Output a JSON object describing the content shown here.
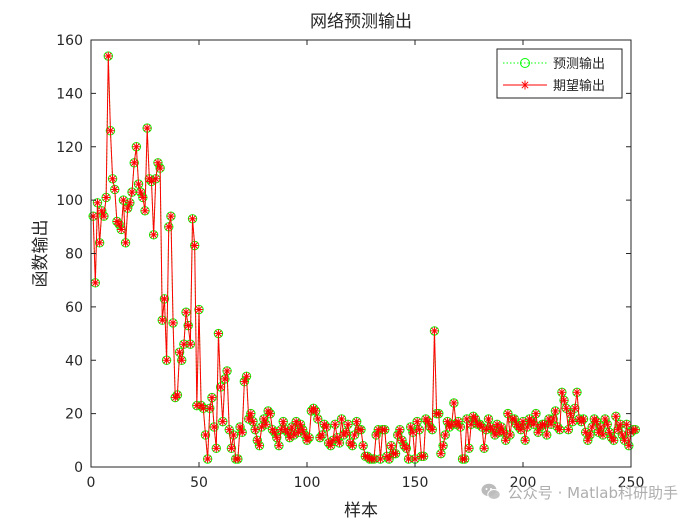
{
  "chart_data": {
    "type": "line",
    "title": "网络预测输出",
    "xlabel": "样本",
    "ylabel": "函数输出",
    "xlim": [
      0,
      250
    ],
    "ylim": [
      0,
      160
    ],
    "xticks": [
      0,
      50,
      100,
      150,
      200,
      250
    ],
    "yticks": [
      0,
      20,
      40,
      60,
      80,
      100,
      120,
      140,
      160
    ],
    "grid": false,
    "legend_position": "top-right",
    "series": [
      {
        "name": "预测输出",
        "style": "dotted line with circle markers",
        "color": "#00ff00",
        "values": [
          94,
          69,
          99,
          84,
          96,
          94,
          101,
          154,
          126,
          108,
          104,
          92,
          91,
          89,
          100,
          84,
          97,
          99,
          103,
          114,
          120,
          106,
          103,
          101,
          96,
          127,
          108,
          107,
          87,
          108,
          114,
          112,
          55,
          63,
          40,
          90,
          94,
          54,
          26,
          27,
          43,
          40,
          46,
          58,
          53,
          46,
          93,
          83,
          23,
          59,
          23,
          22,
          12,
          3,
          22,
          26,
          15,
          7,
          50,
          30,
          17,
          33,
          36,
          14,
          7,
          12,
          3,
          3,
          15,
          13,
          32,
          34,
          18,
          20,
          17,
          14,
          10,
          8,
          15,
          18,
          16,
          21,
          20,
          14,
          13,
          11,
          8,
          14,
          17,
          14,
          13,
          11,
          15,
          12,
          17,
          13,
          16,
          14,
          12,
          10,
          11,
          21,
          22,
          21,
          18,
          11,
          12,
          16,
          15,
          9,
          8,
          10,
          16,
          11,
          9,
          18,
          12,
          13,
          16,
          9,
          8,
          12,
          17,
          14,
          14,
          8,
          4,
          4,
          3,
          3,
          3,
          12,
          14,
          3,
          14,
          14,
          4,
          3,
          8,
          5,
          5,
          12,
          14,
          10,
          8,
          7,
          3,
          15,
          13,
          3,
          17,
          14,
          4,
          4,
          18,
          17,
          15,
          14,
          51,
          20,
          20,
          5,
          8,
          12,
          17,
          15,
          16,
          24,
          16,
          17,
          15,
          3,
          3,
          18,
          7,
          16,
          19,
          18,
          16,
          16,
          15,
          7,
          14,
          18,
          15,
          14,
          12,
          16,
          13,
          15,
          13,
          10,
          20,
          12,
          18,
          18,
          16,
          15,
          14,
          17,
          10,
          15,
          18,
          17,
          16,
          20,
          13,
          15,
          16,
          16,
          12,
          18,
          16,
          18,
          21,
          15,
          14,
          28,
          25,
          22,
          14,
          20,
          17,
          22,
          28,
          18,
          17,
          18,
          13,
          10,
          12,
          15,
          18,
          17,
          13,
          15,
          12,
          18,
          16,
          13,
          11,
          10,
          19,
          14,
          16,
          12,
          10,
          16,
          8,
          13,
          14,
          14
        ]
      },
      {
        "name": "期望输出",
        "style": "solid line with asterisk markers",
        "color": "#ff0000",
        "values": [
          94,
          69,
          99,
          84,
          96,
          94,
          101,
          154,
          126,
          108,
          104,
          92,
          91,
          89,
          100,
          84,
          97,
          99,
          103,
          114,
          120,
          106,
          103,
          101,
          96,
          127,
          108,
          107,
          87,
          108,
          114,
          112,
          55,
          63,
          40,
          90,
          94,
          54,
          26,
          27,
          43,
          40,
          46,
          58,
          53,
          46,
          93,
          83,
          23,
          59,
          23,
          22,
          12,
          3,
          22,
          26,
          15,
          7,
          50,
          30,
          17,
          33,
          36,
          14,
          7,
          12,
          3,
          3,
          15,
          13,
          32,
          34,
          18,
          20,
          17,
          14,
          10,
          8,
          15,
          18,
          16,
          21,
          20,
          14,
          13,
          11,
          8,
          14,
          17,
          14,
          13,
          11,
          15,
          12,
          17,
          13,
          16,
          14,
          12,
          10,
          11,
          21,
          22,
          21,
          18,
          11,
          12,
          16,
          15,
          9,
          8,
          10,
          16,
          11,
          9,
          18,
          12,
          13,
          16,
          9,
          8,
          12,
          17,
          14,
          14,
          8,
          4,
          4,
          3,
          3,
          3,
          12,
          14,
          3,
          14,
          14,
          4,
          3,
          8,
          5,
          5,
          12,
          14,
          10,
          8,
          7,
          3,
          15,
          13,
          3,
          17,
          14,
          4,
          4,
          18,
          17,
          15,
          14,
          51,
          20,
          20,
          5,
          8,
          12,
          17,
          15,
          16,
          24,
          16,
          17,
          15,
          3,
          3,
          18,
          7,
          16,
          19,
          18,
          16,
          16,
          15,
          7,
          14,
          18,
          15,
          14,
          12,
          16,
          13,
          15,
          13,
          10,
          20,
          12,
          18,
          18,
          16,
          15,
          14,
          17,
          10,
          15,
          18,
          17,
          16,
          20,
          13,
          15,
          16,
          16,
          12,
          18,
          16,
          18,
          21,
          15,
          14,
          28,
          25,
          22,
          14,
          20,
          17,
          22,
          28,
          18,
          17,
          18,
          13,
          10,
          12,
          15,
          18,
          17,
          13,
          15,
          12,
          18,
          16,
          13,
          11,
          10,
          19,
          14,
          16,
          12,
          10,
          16,
          8,
          13,
          14,
          14
        ]
      }
    ]
  },
  "watermark": {
    "text": "公众号 · Matlab科研助手",
    "icon": "wechat-icon"
  }
}
